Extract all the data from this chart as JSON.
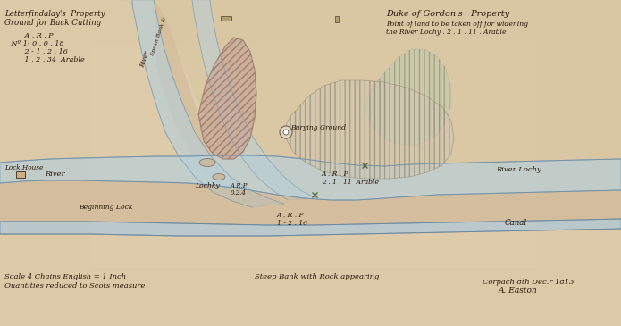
{
  "bg_color": "#dcc9a8",
  "paper_color": "#d8c49e",
  "river_color": "#b8cfd8",
  "canal_color": "#b0c8d8",
  "land_pink": "#dbbba8",
  "land_light": "#d8c8b0",
  "hatch_pink_color": "#c8a090",
  "hatch_green_color": "#b8c8a8",
  "text_color": "#2a1808",
  "top_left": [
    "Letterfindalay's  Property",
    "Ground for Back Cutting",
    "         A . R . P",
    "    Nº 1- 0 . 0 . 18",
    "         2 - 1 . 2 . 16",
    "         1 . 2 . 34  Arable"
  ],
  "top_right_1": "Duke of Gordon's   Property",
  "top_right_2": "Point of land to be taken off for widening",
  "top_right_3": "the River Lochy . 2 . 1 . 11 . Arable",
  "bottom_left_1": "Scale 4 Chains English = 1 Inch",
  "bottom_left_2": "Quantities reduced to Scots measure",
  "bottom_mid": "Steep Bank with Rock appearing",
  "bottom_right_1": "Corpach 8th Dec.r 1813",
  "bottom_right_2": "A. Easton"
}
